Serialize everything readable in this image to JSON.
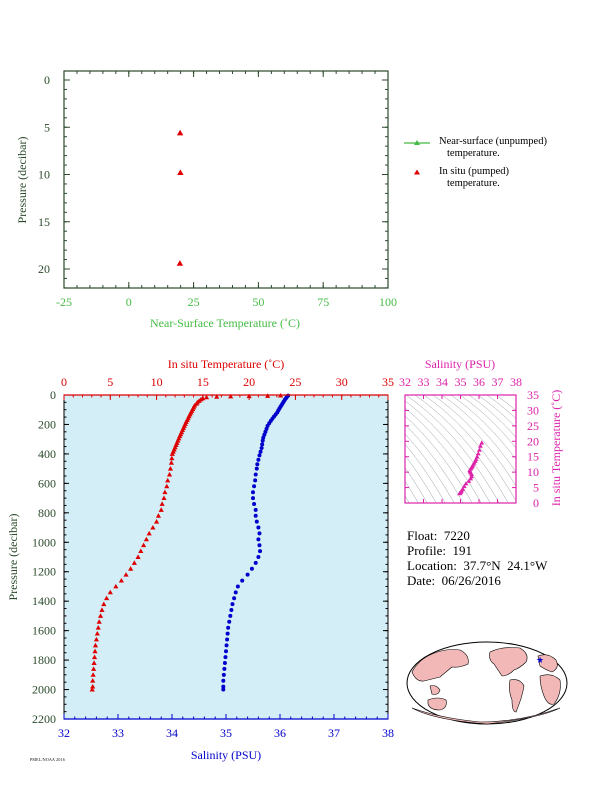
{
  "colors": {
    "near_surface": "#44bb44",
    "in_situ_temp": "#dd0000",
    "salinity": "#0000cc",
    "ts_panel": "#dd22aa",
    "axis": "#2b4a2b",
    "plot_bg": "#d4eef8"
  },
  "info": {
    "float": "Float:  7220",
    "profile": "Profile:  191",
    "location": "Location:  37.7°N  24.1°W",
    "date": "Date:  06/26/2016"
  },
  "legend": {
    "near_surface_line1": "Near-surface (unpumped)",
    "near_surface_line2": "temperature.",
    "in_situ_line1": "In situ (pumped)",
    "in_situ_line2": "temperature."
  },
  "footer_text": "PMEL/NOAA 2016",
  "chart_data": [
    {
      "id": "near_surface",
      "type": "scatter",
      "xlabel": "Near-Surface Temperature (˚C)",
      "ylabel": "Pressure (decibar)",
      "xlim": [
        -25,
        100
      ],
      "ylim": [
        0,
        22
      ],
      "x_ticks": [
        -25,
        0,
        25,
        50,
        75,
        100
      ],
      "y_ticks": [
        0,
        5,
        10,
        15,
        20
      ],
      "grid": false,
      "series": [
        {
          "name": "In situ (pumped) temperature.",
          "points": [
            [
              19.8,
              5.6
            ],
            [
              19.9,
              9.8
            ],
            [
              19.7,
              19.4
            ]
          ]
        }
      ]
    },
    {
      "id": "profile",
      "type": "scatter",
      "ylabel": "Pressure (decibar)",
      "top_xlabel": "In situ Temperature (˚C)",
      "bottom_xlabel": "Salinity (PSU)",
      "temp_lim": [
        0,
        35
      ],
      "sal_lim": [
        32,
        38
      ],
      "ylim": [
        0,
        2200
      ],
      "temp_ticks": [
        0,
        5,
        10,
        15,
        20,
        25,
        30,
        35
      ],
      "sal_ticks": [
        32,
        33,
        34,
        35,
        36,
        37,
        38
      ],
      "y_ticks": [
        0,
        200,
        400,
        600,
        800,
        1000,
        1200,
        1400,
        1600,
        1800,
        2000,
        2200
      ],
      "grid": false,
      "temperature": [
        [
          23.4,
          4
        ],
        [
          22.0,
          6
        ],
        [
          20.0,
          8
        ],
        [
          18.0,
          10
        ],
        [
          16.5,
          12
        ],
        [
          15.4,
          16
        ],
        [
          15.0,
          22
        ],
        [
          14.8,
          30
        ],
        [
          14.6,
          40
        ],
        [
          14.4,
          50
        ],
        [
          14.3,
          60
        ],
        [
          14.1,
          72
        ],
        [
          14.0,
          84
        ],
        [
          13.9,
          96
        ],
        [
          13.8,
          108
        ],
        [
          13.7,
          120
        ],
        [
          13.6,
          132
        ],
        [
          13.5,
          145
        ],
        [
          13.4,
          158
        ],
        [
          13.3,
          170
        ],
        [
          13.2,
          183
        ],
        [
          13.1,
          196
        ],
        [
          13.0,
          210
        ],
        [
          12.9,
          224
        ],
        [
          12.8,
          238
        ],
        [
          12.7,
          252
        ],
        [
          12.6,
          266
        ],
        [
          12.5,
          280
        ],
        [
          12.4,
          295
        ],
        [
          12.3,
          310
        ],
        [
          12.2,
          325
        ],
        [
          12.1,
          340
        ],
        [
          12.0,
          355
        ],
        [
          11.9,
          370
        ],
        [
          11.8,
          385
        ],
        [
          11.7,
          400
        ],
        [
          11.65,
          430
        ],
        [
          11.6,
          460
        ],
        [
          11.5,
          500
        ],
        [
          11.4,
          540
        ],
        [
          11.2,
          580
        ],
        [
          11.1,
          620
        ],
        [
          10.9,
          660
        ],
        [
          10.8,
          700
        ],
        [
          10.6,
          740
        ],
        [
          10.5,
          780
        ],
        [
          10.2,
          820
        ],
        [
          10.0,
          860
        ],
        [
          9.6,
          900
        ],
        [
          9.2,
          940
        ],
        [
          8.9,
          980
        ],
        [
          8.6,
          1020
        ],
        [
          8.3,
          1060
        ],
        [
          8.0,
          1100
        ],
        [
          7.6,
          1140
        ],
        [
          7.2,
          1180
        ],
        [
          6.7,
          1220
        ],
        [
          6.2,
          1260
        ],
        [
          5.6,
          1300
        ],
        [
          5.0,
          1340
        ],
        [
          4.6,
          1380
        ],
        [
          4.3,
          1420
        ],
        [
          4.1,
          1460
        ],
        [
          3.95,
          1500
        ],
        [
          3.8,
          1540
        ],
        [
          3.7,
          1580
        ],
        [
          3.6,
          1620
        ],
        [
          3.5,
          1660
        ],
        [
          3.4,
          1700
        ],
        [
          3.35,
          1740
        ],
        [
          3.3,
          1780
        ],
        [
          3.25,
          1820
        ],
        [
          3.2,
          1860
        ],
        [
          3.15,
          1900
        ],
        [
          3.1,
          1940
        ],
        [
          3.1,
          1980
        ],
        [
          3.05,
          2000
        ]
      ],
      "salinity": [
        [
          36.15,
          4
        ],
        [
          36.13,
          12
        ],
        [
          36.11,
          22
        ],
        [
          36.09,
          32
        ],
        [
          36.07,
          44
        ],
        [
          36.05,
          56
        ],
        [
          36.03,
          68
        ],
        [
          36.01,
          80
        ],
        [
          35.99,
          92
        ],
        [
          35.97,
          104
        ],
        [
          35.95,
          118
        ],
        [
          35.92,
          132
        ],
        [
          35.89,
          146
        ],
        [
          35.86,
          160
        ],
        [
          35.83,
          176
        ],
        [
          35.8,
          192
        ],
        [
          35.77,
          210
        ],
        [
          35.75,
          230
        ],
        [
          35.73,
          250
        ],
        [
          35.71,
          270
        ],
        [
          35.69,
          290
        ],
        [
          35.68,
          310
        ],
        [
          35.67,
          335
        ],
        [
          35.66,
          360
        ],
        [
          35.64,
          385
        ],
        [
          35.62,
          410
        ],
        [
          35.6,
          440
        ],
        [
          35.58,
          470
        ],
        [
          35.57,
          500
        ],
        [
          35.55,
          540
        ],
        [
          35.54,
          580
        ],
        [
          35.52,
          620
        ],
        [
          35.5,
          660
        ],
        [
          35.5,
          700
        ],
        [
          35.52,
          740
        ],
        [
          35.55,
          780
        ],
        [
          35.55,
          820
        ],
        [
          35.57,
          860
        ],
        [
          35.6,
          900
        ],
        [
          35.62,
          940
        ],
        [
          35.6,
          980
        ],
        [
          35.62,
          1020
        ],
        [
          35.63,
          1060
        ],
        [
          35.6,
          1100
        ],
        [
          35.55,
          1140
        ],
        [
          35.48,
          1180
        ],
        [
          35.4,
          1220
        ],
        [
          35.3,
          1260
        ],
        [
          35.22,
          1300
        ],
        [
          35.18,
          1340
        ],
        [
          35.15,
          1380
        ],
        [
          35.12,
          1420
        ],
        [
          35.1,
          1460
        ],
        [
          35.08,
          1500
        ],
        [
          35.06,
          1540
        ],
        [
          35.04,
          1580
        ],
        [
          35.03,
          1620
        ],
        [
          35.02,
          1660
        ],
        [
          35.01,
          1700
        ],
        [
          35.0,
          1740
        ],
        [
          34.99,
          1780
        ],
        [
          34.98,
          1820
        ],
        [
          34.97,
          1860
        ],
        [
          34.96,
          1900
        ],
        [
          34.95,
          1940
        ],
        [
          34.95,
          1980
        ],
        [
          34.95,
          2000
        ]
      ]
    },
    {
      "id": "ts_diagram",
      "type": "scatter",
      "xlabel": "Salinity (PSU)",
      "ylabel": "In situ Temperature (˚C)",
      "xlim": [
        32,
        38
      ],
      "ylim": [
        0,
        35
      ],
      "x_ticks": [
        32,
        33,
        34,
        35,
        36,
        37,
        38
      ],
      "y_ticks": [
        0,
        5,
        10,
        15,
        20,
        25,
        30,
        35
      ],
      "points": [
        [
          36.15,
          19.5
        ],
        [
          36.08,
          18.5
        ],
        [
          36.02,
          17.2
        ],
        [
          35.96,
          16.0
        ],
        [
          35.9,
          15.0
        ],
        [
          35.84,
          14.2
        ],
        [
          35.8,
          13.6
        ],
        [
          35.74,
          13.0
        ],
        [
          35.68,
          12.4
        ],
        [
          35.64,
          11.9
        ],
        [
          35.6,
          11.5
        ],
        [
          35.55,
          11.1
        ],
        [
          35.5,
          10.6
        ],
        [
          35.52,
          10.2
        ],
        [
          35.55,
          9.8
        ],
        [
          35.6,
          9.3
        ],
        [
          35.6,
          8.6
        ],
        [
          35.55,
          7.9
        ],
        [
          35.45,
          7.1
        ],
        [
          35.3,
          6.3
        ],
        [
          35.2,
          5.4
        ],
        [
          35.12,
          4.5
        ],
        [
          35.06,
          4.0
        ],
        [
          35.02,
          3.6
        ],
        [
          34.98,
          3.3
        ],
        [
          34.95,
          3.1
        ]
      ]
    }
  ]
}
